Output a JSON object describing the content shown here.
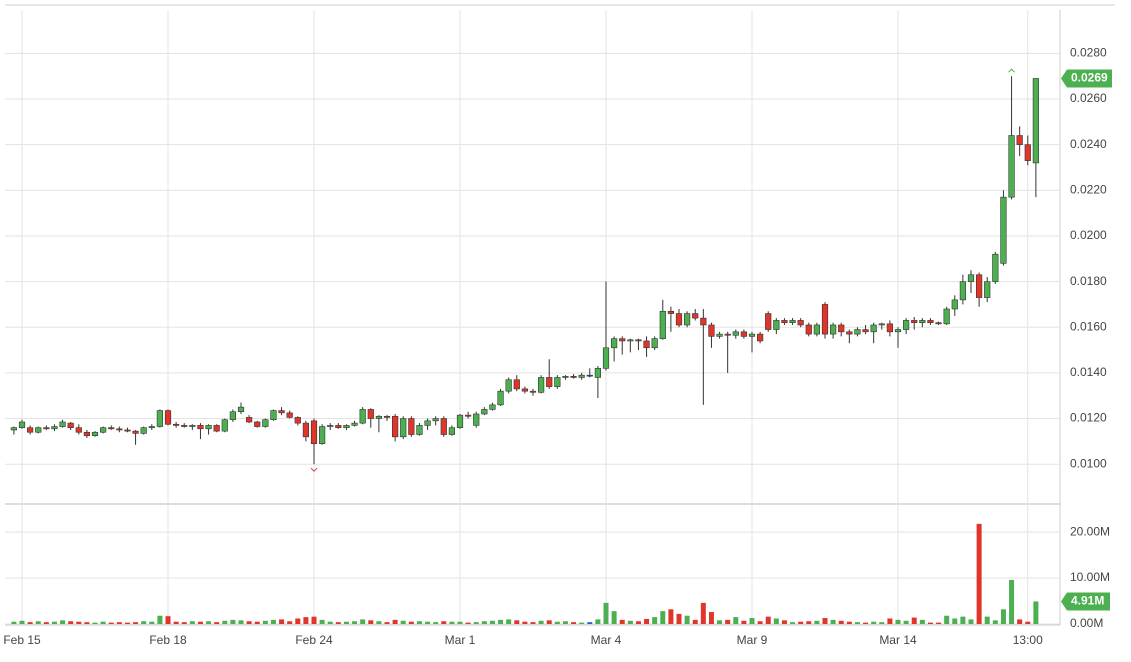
{
  "chart_data": {
    "type": "candlestick",
    "categories": [
      null,
      "Feb 15",
      null,
      null,
      null,
      null,
      null,
      null,
      null,
      null,
      null,
      null,
      null,
      null,
      null,
      null,
      null,
      null,
      null,
      "Feb 18",
      null,
      null,
      null,
      null,
      null,
      null,
      null,
      null,
      null,
      null,
      null,
      null,
      null,
      null,
      null,
      null,
      null,
      "Feb 24",
      null,
      null,
      null,
      null,
      null,
      null,
      null,
      null,
      null,
      null,
      null,
      null,
      null,
      null,
      null,
      null,
      null,
      "Mar 1",
      null,
      null,
      null,
      null,
      null,
      null,
      null,
      null,
      null,
      null,
      null,
      null,
      null,
      null,
      null,
      null,
      null,
      "Mar 4",
      null,
      null,
      null,
      null,
      null,
      null,
      null,
      null,
      null,
      null,
      null,
      null,
      null,
      null,
      null,
      null,
      null,
      "Mar 9",
      null,
      null,
      null,
      null,
      null,
      null,
      null,
      null,
      null,
      null,
      null,
      null,
      null,
      null,
      null,
      null,
      null,
      "Mar 14",
      null,
      null,
      null,
      null,
      null,
      null,
      null,
      null,
      null,
      null,
      null,
      null,
      null,
      null,
      null,
      "13:00",
      null
    ],
    "candles": [
      [
        0.0115,
        0.01165,
        0.0113,
        0.0116
      ],
      [
        0.0116,
        0.01195,
        0.01155,
        0.01185
      ],
      [
        0.0116,
        0.0117,
        0.0113,
        0.0114
      ],
      [
        0.0114,
        0.01165,
        0.01135,
        0.0116
      ],
      [
        0.0116,
        0.0117,
        0.0115,
        0.01155
      ],
      [
        0.01155,
        0.01175,
        0.01145,
        0.01165
      ],
      [
        0.01165,
        0.01195,
        0.0116,
        0.01185
      ],
      [
        0.0118,
        0.01185,
        0.0115,
        0.0116
      ],
      [
        0.0116,
        0.01175,
        0.0113,
        0.0114
      ],
      [
        0.0114,
        0.0115,
        0.01115,
        0.01125
      ],
      [
        0.01125,
        0.01145,
        0.0112,
        0.0114
      ],
      [
        0.0114,
        0.01165,
        0.01135,
        0.0116
      ],
      [
        0.0116,
        0.0117,
        0.0115,
        0.01155
      ],
      [
        0.01155,
        0.01165,
        0.0114,
        0.0115
      ],
      [
        0.0115,
        0.0116,
        0.0114,
        0.01145
      ],
      [
        0.01145,
        0.0115,
        0.01085,
        0.01135
      ],
      [
        0.01135,
        0.01165,
        0.0113,
        0.0116
      ],
      [
        0.0116,
        0.01175,
        0.0115,
        0.01165
      ],
      [
        0.01165,
        0.0124,
        0.0116,
        0.01235
      ],
      [
        0.01235,
        0.0124,
        0.0117,
        0.01175
      ],
      [
        0.01175,
        0.01185,
        0.0116,
        0.0117
      ],
      [
        0.0117,
        0.0118,
        0.0116,
        0.01165
      ],
      [
        0.01165,
        0.01175,
        0.0115,
        0.0117
      ],
      [
        0.0117,
        0.0118,
        0.0111,
        0.01155
      ],
      [
        0.01155,
        0.01175,
        0.0113,
        0.0117
      ],
      [
        0.0117,
        0.01175,
        0.0114,
        0.01145
      ],
      [
        0.01145,
        0.012,
        0.0114,
        0.01195
      ],
      [
        0.01195,
        0.0124,
        0.01185,
        0.0123
      ],
      [
        0.0123,
        0.0127,
        0.0122,
        0.0125
      ],
      [
        0.01205,
        0.01215,
        0.0118,
        0.01185
      ],
      [
        0.01185,
        0.0119,
        0.0116,
        0.01165
      ],
      [
        0.01165,
        0.012,
        0.0116,
        0.01195
      ],
      [
        0.01195,
        0.0124,
        0.0119,
        0.01235
      ],
      [
        0.01235,
        0.0125,
        0.01215,
        0.01225
      ],
      [
        0.01225,
        0.01235,
        0.012,
        0.01205
      ],
      [
        0.01205,
        0.0121,
        0.0117,
        0.0118
      ],
      [
        0.0118,
        0.0119,
        0.011,
        0.0112
      ],
      [
        0.0119,
        0.012,
        0.01,
        0.0109
      ],
      [
        0.0109,
        0.01175,
        0.01085,
        0.01165
      ],
      [
        0.01165,
        0.0118,
        0.0115,
        0.0117
      ],
      [
        0.0117,
        0.0118,
        0.01155,
        0.0116
      ],
      [
        0.0116,
        0.01175,
        0.0115,
        0.0117
      ],
      [
        0.0117,
        0.0119,
        0.01165,
        0.0118
      ],
      [
        0.0118,
        0.0125,
        0.01175,
        0.0124
      ],
      [
        0.0124,
        0.01245,
        0.0116,
        0.012
      ],
      [
        0.012,
        0.01215,
        0.0114,
        0.0121
      ],
      [
        0.0121,
        0.01215,
        0.0119,
        0.01205
      ],
      [
        0.0121,
        0.0122,
        0.011,
        0.0112
      ],
      [
        0.0112,
        0.0121,
        0.0111,
        0.012
      ],
      [
        0.012,
        0.0121,
        0.0112,
        0.0113
      ],
      [
        0.0113,
        0.0118,
        0.01125,
        0.0117
      ],
      [
        0.0117,
        0.012,
        0.0115,
        0.0119
      ],
      [
        0.0119,
        0.0121,
        0.0117,
        0.012
      ],
      [
        0.012,
        0.0121,
        0.0112,
        0.0113
      ],
      [
        0.0113,
        0.0117,
        0.01125,
        0.0116
      ],
      [
        0.0116,
        0.0122,
        0.01155,
        0.01215
      ],
      [
        0.01215,
        0.0123,
        0.012,
        0.0121
      ],
      [
        0.0117,
        0.0123,
        0.0116,
        0.0122
      ],
      [
        0.0122,
        0.0125,
        0.01215,
        0.0124
      ],
      [
        0.0124,
        0.0127,
        0.01235,
        0.0126
      ],
      [
        0.0126,
        0.0133,
        0.01255,
        0.0132
      ],
      [
        0.0132,
        0.0138,
        0.0131,
        0.0137
      ],
      [
        0.0137,
        0.0139,
        0.0132,
        0.0133
      ],
      [
        0.0133,
        0.0134,
        0.0131,
        0.0132
      ],
      [
        0.0132,
        0.0133,
        0.013,
        0.01315
      ],
      [
        0.01315,
        0.0139,
        0.0131,
        0.0138
      ],
      [
        0.0138,
        0.0146,
        0.0133,
        0.0134
      ],
      [
        0.0134,
        0.0139,
        0.0133,
        0.0138
      ],
      [
        0.0138,
        0.0139,
        0.0137,
        0.01385
      ],
      [
        0.01385,
        0.01395,
        0.01375,
        0.0138
      ],
      [
        0.0138,
        0.014,
        0.0137,
        0.0139
      ],
      [
        0.0139,
        0.0142,
        0.0138,
        0.0139
      ],
      [
        0.0138,
        0.0143,
        0.0129,
        0.0142
      ],
      [
        0.0142,
        0.018,
        0.0141,
        0.0151
      ],
      [
        0.0151,
        0.0156,
        0.0145,
        0.0155
      ],
      [
        0.0155,
        0.0156,
        0.0148,
        0.0154
      ],
      [
        0.0154,
        0.0155,
        0.0149,
        0.01545
      ],
      [
        0.01545,
        0.0155,
        0.015,
        0.0154
      ],
      [
        0.0154,
        0.0156,
        0.0147,
        0.0151
      ],
      [
        0.0151,
        0.0156,
        0.015,
        0.0155
      ],
      [
        0.0155,
        0.0172,
        0.01545,
        0.0167
      ],
      [
        0.0167,
        0.0169,
        0.0158,
        0.0166
      ],
      [
        0.0166,
        0.0168,
        0.016,
        0.0161
      ],
      [
        0.0161,
        0.0167,
        0.016,
        0.0166
      ],
      [
        0.0166,
        0.0168,
        0.0163,
        0.0164
      ],
      [
        0.0164,
        0.0168,
        0.0126,
        0.0161
      ],
      [
        0.0161,
        0.0162,
        0.0151,
        0.0156
      ],
      [
        0.0156,
        0.0158,
        0.0155,
        0.0157
      ],
      [
        0.0157,
        0.0158,
        0.014,
        0.01565
      ],
      [
        0.01565,
        0.0159,
        0.0155,
        0.0158
      ],
      [
        0.0158,
        0.0159,
        0.0155,
        0.0156
      ],
      [
        0.0156,
        0.0158,
        0.0149,
        0.0157
      ],
      [
        0.0157,
        0.0158,
        0.0153,
        0.0154
      ],
      [
        0.0166,
        0.0167,
        0.0158,
        0.0159
      ],
      [
        0.0159,
        0.0164,
        0.0157,
        0.0163
      ],
      [
        0.0163,
        0.0164,
        0.0161,
        0.0162
      ],
      [
        0.0162,
        0.0164,
        0.0161,
        0.0163
      ],
      [
        0.0163,
        0.0164,
        0.016,
        0.0161
      ],
      [
        0.0161,
        0.0162,
        0.0156,
        0.0157
      ],
      [
        0.0157,
        0.0162,
        0.0156,
        0.0161
      ],
      [
        0.017,
        0.0171,
        0.0155,
        0.0157
      ],
      [
        0.0157,
        0.0162,
        0.0155,
        0.0161
      ],
      [
        0.0161,
        0.0162,
        0.0156,
        0.0158
      ],
      [
        0.0158,
        0.0159,
        0.0153,
        0.0157
      ],
      [
        0.0157,
        0.016,
        0.0156,
        0.0159
      ],
      [
        0.0159,
        0.0161,
        0.0157,
        0.0158
      ],
      [
        0.0158,
        0.0162,
        0.0153,
        0.0161
      ],
      [
        0.0161,
        0.0162,
        0.0159,
        0.01615
      ],
      [
        0.01615,
        0.0163,
        0.0156,
        0.0158
      ],
      [
        0.0158,
        0.016,
        0.0151,
        0.0159
      ],
      [
        0.0159,
        0.0164,
        0.0157,
        0.0163
      ],
      [
        0.0163,
        0.01645,
        0.0159,
        0.0162
      ],
      [
        0.0162,
        0.0164,
        0.016,
        0.0163
      ],
      [
        0.0163,
        0.0164,
        0.0161,
        0.0162
      ],
      [
        0.0162,
        0.01625,
        0.0161,
        0.01615
      ],
      [
        0.01615,
        0.0169,
        0.0161,
        0.0168
      ],
      [
        0.0168,
        0.0174,
        0.0165,
        0.0172
      ],
      [
        0.0172,
        0.0183,
        0.017,
        0.018
      ],
      [
        0.018,
        0.0185,
        0.0175,
        0.0183
      ],
      [
        0.0183,
        0.0184,
        0.0169,
        0.0173
      ],
      [
        0.0173,
        0.0182,
        0.0171,
        0.018
      ],
      [
        0.018,
        0.0193,
        0.0179,
        0.0192
      ],
      [
        0.0188,
        0.022,
        0.0187,
        0.0217
      ],
      [
        0.0217,
        0.027,
        0.0216,
        0.0244
      ],
      [
        0.0244,
        0.0248,
        0.0235,
        0.024
      ],
      [
        0.024,
        0.0244,
        0.0231,
        0.0233
      ],
      [
        0.0232,
        0.0269,
        0.0217,
        0.0269
      ]
    ],
    "volume": [
      0.5,
      0.7,
      0.4,
      0.6,
      0.4,
      0.5,
      0.8,
      0.6,
      0.5,
      0.4,
      0.3,
      0.5,
      0.3,
      0.4,
      0.3,
      0.4,
      0.6,
      0.5,
      1.8,
      1.7,
      0.5,
      0.4,
      0.6,
      0.5,
      0.6,
      0.4,
      0.7,
      0.9,
      0.8,
      0.6,
      0.5,
      0.7,
      0.9,
      1.0,
      0.6,
      1.2,
      1.5,
      1.6,
      0.9,
      0.5,
      0.4,
      0.5,
      0.6,
      1.0,
      0.8,
      0.6,
      0.4,
      0.9,
      0.7,
      0.5,
      0.6,
      0.5,
      0.4,
      0.6,
      0.5,
      0.5,
      0.3,
      0.4,
      0.6,
      0.7,
      0.9,
      1.0,
      0.8,
      0.5,
      0.4,
      0.7,
      0.8,
      0.5,
      0.6,
      0.4,
      0.3,
      0.4,
      1.0,
      4.6,
      2.8,
      0.9,
      0.7,
      0.6,
      1.1,
      1.5,
      2.8,
      3.2,
      2.2,
      1.8,
      0.9,
      4.6,
      2.6,
      0.8,
      0.9,
      1.5,
      0.7,
      1.3,
      0.6,
      1.6,
      1.2,
      0.8,
      0.4,
      0.5,
      0.6,
      0.7,
      1.3,
      0.9,
      0.7,
      0.5,
      0.4,
      0.3,
      0.5,
      0.4,
      1.2,
      0.9,
      0.7,
      1.4,
      0.9,
      0.3,
      0.3,
      1.8,
      1.2,
      1.6,
      1.0,
      21.8,
      1.6,
      0.8,
      3.2,
      9.6,
      1.0,
      0.5,
      4.91
    ],
    "ylim": [
      0.0083,
      0.0299
    ],
    "yticks": [
      {
        "value": 0.01,
        "label": "0.0100"
      },
      {
        "value": 0.012,
        "label": "0.0120"
      },
      {
        "value": 0.014,
        "label": "0.0140"
      },
      {
        "value": 0.016,
        "label": "0.0160"
      },
      {
        "value": 0.018,
        "label": "0.0180"
      },
      {
        "value": 0.02,
        "label": "0.0200"
      },
      {
        "value": 0.022,
        "label": "0.0220"
      },
      {
        "value": 0.024,
        "label": "0.0240"
      },
      {
        "value": 0.026,
        "label": "0.0260"
      },
      {
        "value": 0.028,
        "label": "0.0280"
      }
    ],
    "volume_ylim": [
      0,
      25.9
    ],
    "volume_yticks": [
      {
        "value": 0,
        "label": "0.00M"
      },
      {
        "value": 10,
        "label": "10.00M"
      },
      {
        "value": 20,
        "label": "20.00M"
      }
    ],
    "last_close_label": "0.0269",
    "last_volume_label": "4.91M",
    "up_color": "#4caf50",
    "down_color": "#e0352b",
    "flat_color": "#2e5ec9",
    "grid": true
  }
}
